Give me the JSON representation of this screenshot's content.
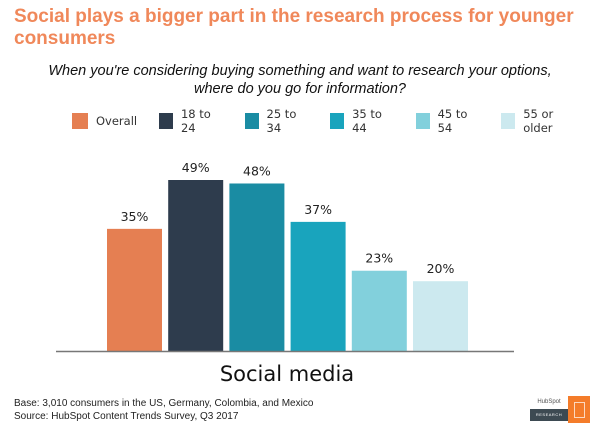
{
  "header": {
    "title": "Social plays a bigger part in the research process for younger consumers",
    "question": "When you're considering buying something and want to research your options, where do you go for information?"
  },
  "chart_data": {
    "type": "bar",
    "title": "Social plays a bigger part in the research process for younger consumers",
    "subtitle": "When you're considering buying something and want to research your options, where do you go for information?",
    "categories": [
      "Social media"
    ],
    "series": [
      {
        "name": "Overall",
        "values": [
          35
        ],
        "color": "#e57f52"
      },
      {
        "name": "18 to 24",
        "values": [
          49
        ],
        "color": "#2e3c4d"
      },
      {
        "name": "25 to 34",
        "values": [
          48
        ],
        "color": "#1a8ca3"
      },
      {
        "name": "35 to 44",
        "values": [
          37
        ],
        "color": "#19a4bd"
      },
      {
        "name": "45 to 54",
        "values": [
          23
        ],
        "color": "#82d0dc"
      },
      {
        "name": "55 or older",
        "values": [
          20
        ],
        "color": "#cce9ef"
      }
    ],
    "value_format": "{v}%",
    "xlabel": "Social media",
    "ylabel": "",
    "ylim": [
      0,
      49
    ],
    "grid": false,
    "legend_position": "top"
  },
  "footer": {
    "base": "Base: 3,010 consumers in the US, Germany, Colombia, and Mexico",
    "source": "Source: HubSpot Content Trends Survey, Q3 2017"
  },
  "logo": {
    "brand": "HubSpot",
    "label": "RESEARCH"
  }
}
